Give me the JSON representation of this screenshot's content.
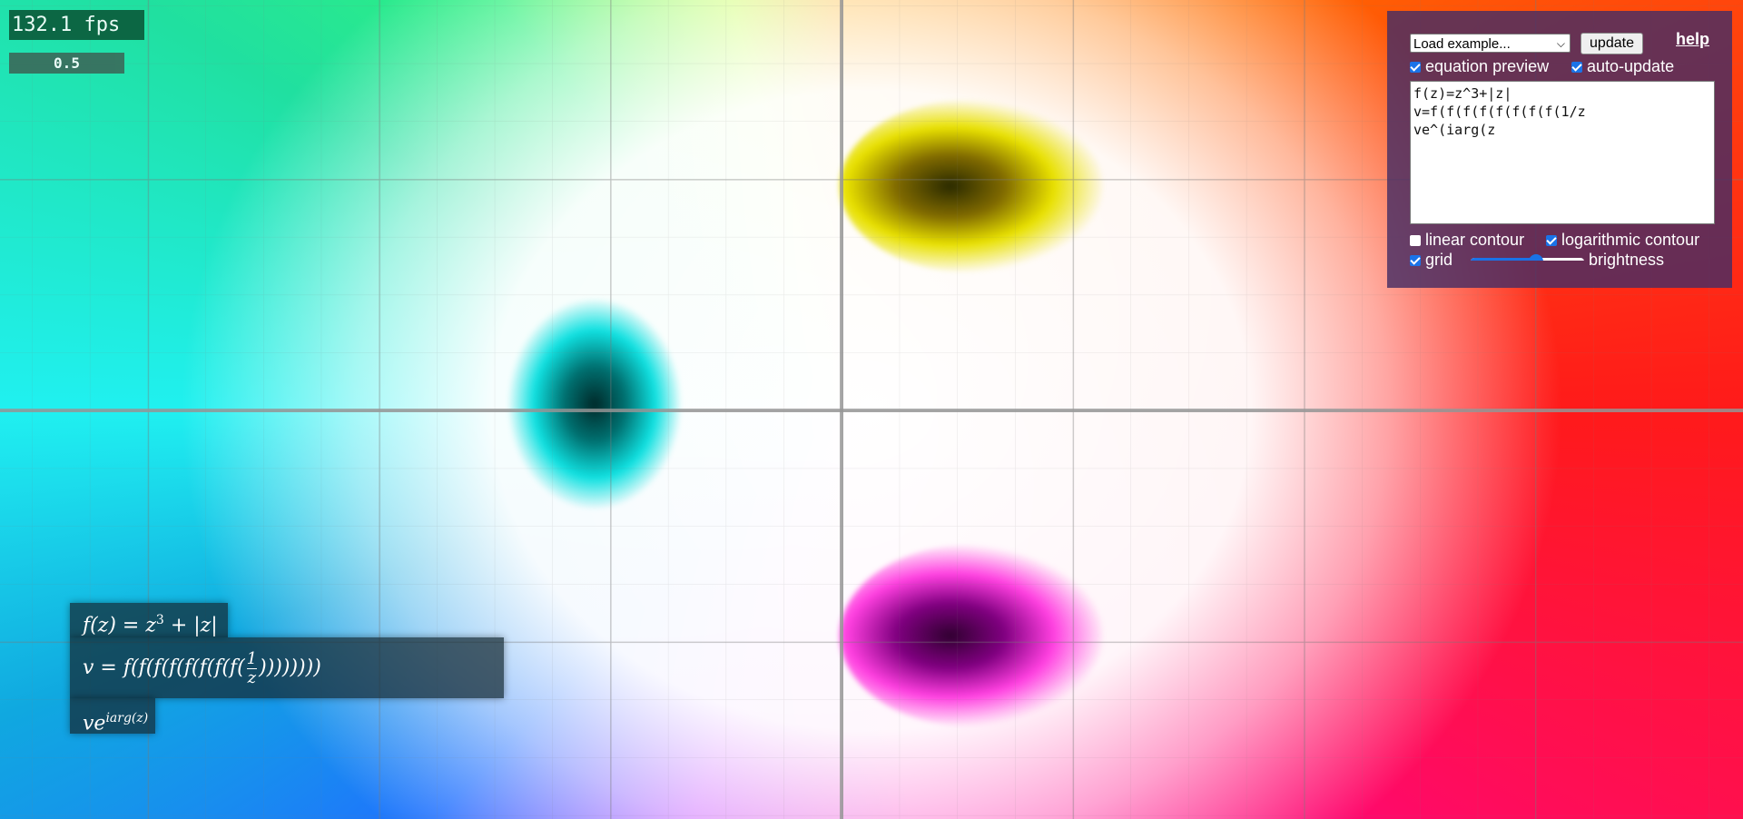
{
  "fps": "132.1 fps",
  "slider_value": "0.5",
  "panel": {
    "select": "Load example...",
    "update_button": "update",
    "help_link": "help",
    "equation_preview": "equation preview",
    "auto_update": "auto-update",
    "code_lines": [
      "f(z)=z^3+|z|",
      "v=f(f(f(f(f(f(f(f(1/z",
      "ve^(iarg(z"
    ],
    "linear_contour": "linear contour",
    "logarithmic_contour": "logarithmic contour",
    "grid": "grid",
    "brightness": "brightness"
  },
  "preview": {
    "line1": {
      "lhs": "f(z) = z",
      "sup": "3",
      "rhs": " + |z|"
    },
    "line2": {
      "lhs": "v = f(f(f(f(f(f(f(f(",
      "num": "1",
      "den": "z",
      "rhs": "))))))))"
    },
    "line3": {
      "base": "ve",
      "sup": "iarg(z)"
    }
  }
}
